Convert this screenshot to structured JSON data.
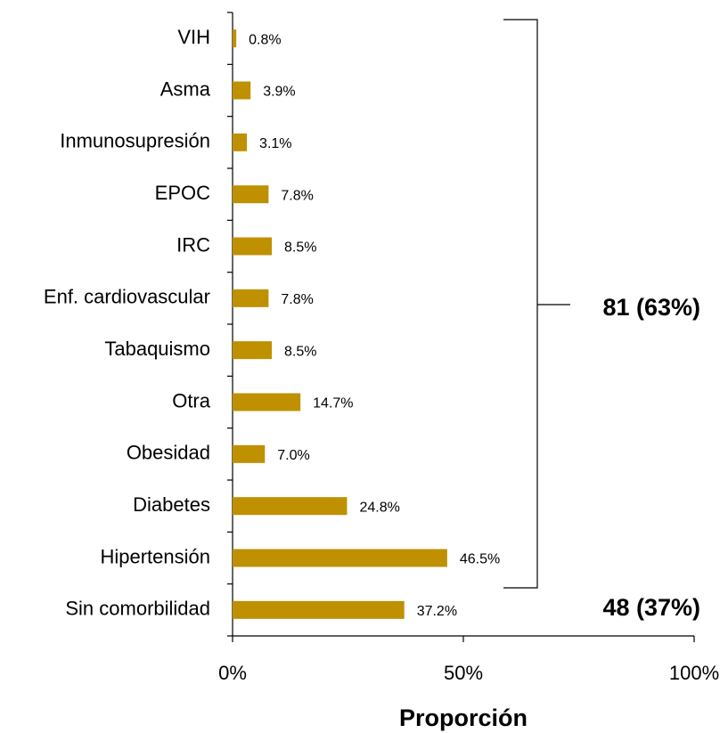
{
  "chart_data": {
    "type": "bar",
    "categories": [
      "VIH",
      "Asma",
      "Inmunosupresión",
      "EPOC",
      "IRC",
      "Enf. cardiovascular",
      "Tabaquismo",
      "Otra",
      "Obesidad",
      "Diabetes",
      "Hipertensión",
      "Sin comorbilidad"
    ],
    "values": [
      0.8,
      3.9,
      3.1,
      7.8,
      8.5,
      7.8,
      8.5,
      14.7,
      7.0,
      24.8,
      46.5,
      37.2
    ],
    "value_labels": [
      "0.8%",
      "3.9%",
      "3.1%",
      "7.8%",
      "8.5%",
      "7.8%",
      "8.5%",
      "14.7%",
      "7.0%",
      "24.8%",
      "46.5%",
      "37.2%"
    ],
    "color": "#bf9000",
    "xlim": [
      0,
      100
    ],
    "xticks": [
      {
        "value": 0,
        "label": "0%"
      },
      {
        "value": 50,
        "label": "50%"
      },
      {
        "value": 100,
        "label": "100%"
      }
    ],
    "x_label": "Proporción",
    "annotations": [
      "81 (63%)",
      "48 (37%)"
    ]
  }
}
